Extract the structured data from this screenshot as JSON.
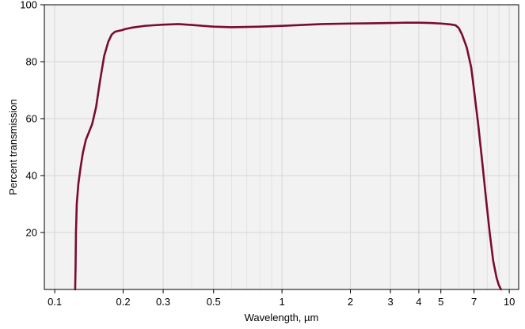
{
  "chart_data": {
    "type": "line",
    "title": "",
    "xlabel": "Wavelength, µm",
    "ylabel": "Percent transmission",
    "x_scale": "log",
    "xlim": [
      0.09,
      11
    ],
    "ylim": [
      0,
      100
    ],
    "x_ticks": [
      0.1,
      0.2,
      0.3,
      0.5,
      1,
      2,
      3,
      4,
      5,
      7,
      10
    ],
    "x_tick_labels": [
      "0.1",
      "0.2",
      "0.3",
      "0.5",
      "1",
      "2",
      "3",
      "4",
      "5",
      "7",
      "10"
    ],
    "y_ticks": [
      20,
      40,
      60,
      80,
      100
    ],
    "y_tick_labels": [
      "20",
      "40",
      "60",
      "80",
      "100"
    ],
    "x_minor_grid": [
      0.4,
      0.6,
      0.7,
      0.8,
      0.9,
      6,
      8,
      9
    ],
    "grid": true,
    "legend": "none",
    "colors": {
      "line": "#7a0c2e",
      "plot_bg": "#f2f2f2",
      "grid": "#d6d6d6"
    },
    "series": [
      {
        "x": [
          0.123,
          0.1235,
          0.124,
          0.125,
          0.127,
          0.13,
          0.133,
          0.137,
          0.141,
          0.146,
          0.152,
          0.158,
          0.165,
          0.172,
          0.178,
          0.184,
          0.19,
          0.196,
          0.205,
          0.22,
          0.25,
          0.3,
          0.35,
          0.4,
          0.5,
          0.6,
          0.7,
          0.8,
          1.0,
          1.5,
          2.0,
          2.5,
          3.0,
          3.5,
          4.0,
          4.5,
          5.0,
          5.5,
          5.8,
          6.0,
          6.2,
          6.5,
          6.8,
          7.0,
          7.3,
          7.6,
          7.9,
          8.2,
          8.5,
          8.8,
          9.0,
          9.2
        ],
        "y": [
          0,
          8,
          20,
          30,
          37,
          43,
          48,
          52.5,
          55,
          58,
          64,
          73,
          82,
          87,
          89.5,
          90.5,
          90.8,
          91,
          91.5,
          92,
          92.6,
          93,
          93.2,
          92.9,
          92.3,
          92.1,
          92.2,
          92.3,
          92.6,
          93.2,
          93.4,
          93.5,
          93.6,
          93.7,
          93.7,
          93.6,
          93.4,
          93.1,
          92.8,
          91.8,
          89.5,
          85,
          78,
          70,
          58,
          45,
          32,
          20,
          10,
          4,
          1.5,
          0
        ]
      }
    ]
  }
}
